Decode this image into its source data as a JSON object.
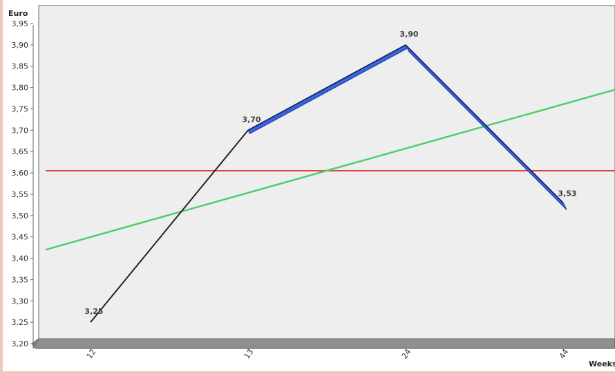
{
  "chart_data": {
    "type": "line",
    "ylabel": "Euro",
    "xlabel": "Weeks",
    "categories": [
      "12",
      "13",
      "24",
      "44"
    ],
    "ylim": [
      3.2,
      3.95
    ],
    "yticks": [
      "3,20",
      "3,25",
      "3,30",
      "3,35",
      "3,40",
      "3,45",
      "3,50",
      "3,55",
      "3,60",
      "3,65",
      "3,70",
      "3,75",
      "3,80",
      "3,85",
      "3,90",
      "3,95"
    ],
    "series": [
      {
        "values": [
          3.25,
          3.7,
          3.9,
          3.53
        ],
        "labels": [
          "3,25",
          "3,70",
          "3,90",
          "3,53"
        ],
        "color": "#1f3fb0",
        "fill_color": "#3a64d8"
      }
    ],
    "average_line": {
      "value": 3.605,
      "color": "#e04545"
    },
    "trend_line": {
      "start": 3.42,
      "end": 3.795,
      "color": "#4ccf6a"
    },
    "grid": false,
    "background": "#eeeeee"
  }
}
